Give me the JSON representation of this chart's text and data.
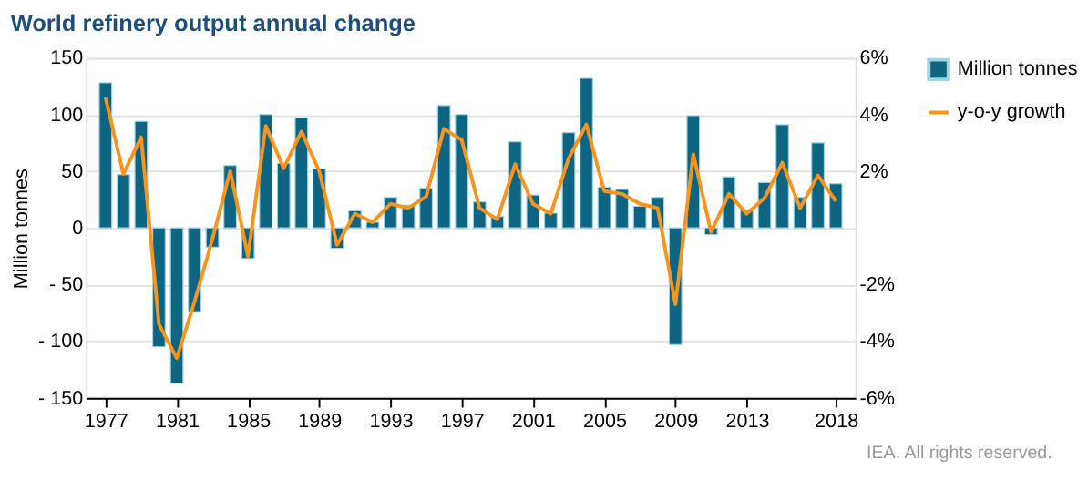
{
  "chart_data": {
    "type": "bar",
    "title": "World refinery output annual change",
    "ylabel": "Million tonnes",
    "x": [
      1977,
      1978,
      1979,
      1980,
      1981,
      1982,
      1983,
      1984,
      1985,
      1986,
      1987,
      1988,
      1989,
      1990,
      1991,
      1992,
      1993,
      1994,
      1995,
      1996,
      1997,
      1998,
      1999,
      2000,
      2001,
      2002,
      2003,
      2004,
      2005,
      2006,
      2007,
      2008,
      2009,
      2010,
      2011,
      2012,
      2013,
      2014,
      2015,
      2016,
      2017,
      2018
    ],
    "series": [
      {
        "name": "Million tonnes",
        "color": "#0e6582",
        "values": [
          128,
          47,
          94,
          -105,
          -137,
          -74,
          -17,
          55,
          -27,
          100,
          57,
          97,
          52,
          -18,
          15,
          5,
          27,
          20,
          35,
          108,
          100,
          23,
          10,
          76,
          29,
          13,
          84,
          132,
          36,
          34,
          19,
          27,
          -103,
          99,
          -6,
          45,
          16,
          40,
          91,
          27,
          75,
          39
        ]
      },
      {
        "name": "y-o-y growth",
        "type": "line",
        "axis": "y2",
        "color": "#f7941d",
        "values": [
          4.6,
          1.9,
          3.2,
          -3.4,
          -4.6,
          -2.6,
          -0.4,
          2.0,
          -1.0,
          3.6,
          2.1,
          3.4,
          2.0,
          -0.6,
          0.5,
          0.2,
          0.85,
          0.7,
          1.1,
          3.5,
          3.1,
          0.7,
          0.3,
          2.25,
          0.85,
          0.5,
          2.45,
          3.65,
          1.3,
          1.2,
          0.85,
          0.7,
          -2.7,
          2.6,
          -0.15,
          1.2,
          0.5,
          1.05,
          2.3,
          0.7,
          1.85,
          0.95
        ]
      }
    ],
    "xlim": [
      1976.4,
      2018.6
    ],
    "xticks": [
      1977,
      1981,
      1985,
      1989,
      1993,
      1997,
      2001,
      2005,
      2009,
      2013,
      2018
    ],
    "ylim": [
      -150,
      150
    ],
    "yticks": [
      {
        "value": -150,
        "label": "- 150"
      },
      {
        "value": -100,
        "label": "- 100"
      },
      {
        "value": -50,
        "label": "- 50"
      },
      0,
      50,
      100,
      150
    ],
    "y2lim": [
      -6,
      6
    ],
    "y2ticks": [
      {
        "value": -6,
        "label": "-6%"
      },
      {
        "value": -4,
        "label": "-4%"
      },
      {
        "value": -2,
        "label": "-2%"
      },
      {
        "value": 0,
        "label": null
      },
      {
        "value": 2,
        "label": "2%"
      },
      {
        "value": 4,
        "label": "4%"
      },
      {
        "value": 6,
        "label": "6%"
      }
    ],
    "grid": "y",
    "legend": "right",
    "annotations": [
      "IEA. All rights reserved."
    ]
  }
}
